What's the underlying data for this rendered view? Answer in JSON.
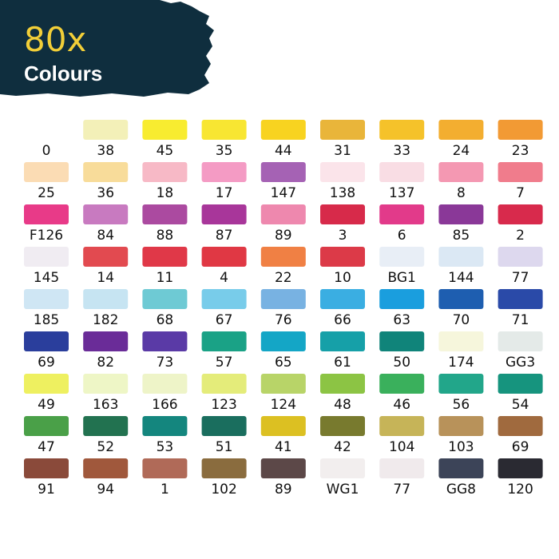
{
  "header": {
    "count": "80x",
    "subtitle": "Colours"
  },
  "swatches": [
    [
      {
        "label": "0"
      },
      {
        "label": "38",
        "color": "#f3f0b8"
      },
      {
        "label": "45",
        "color": "#f8ec30"
      },
      {
        "label": "35",
        "color": "#f8e632"
      },
      {
        "label": "44",
        "color": "#f8d320"
      },
      {
        "label": "31",
        "color": "#e9b53a"
      },
      {
        "label": "33",
        "color": "#f5c22a"
      },
      {
        "label": "24",
        "color": "#f3ae30"
      },
      {
        "label": "23",
        "color": "#f29a34"
      }
    ],
    [
      {
        "label": "25",
        "color": "#fbdcb4"
      },
      {
        "label": "36",
        "color": "#f8dc9a"
      },
      {
        "label": "18",
        "color": "#f7b9c6"
      },
      {
        "label": "17",
        "color": "#f49bc4"
      },
      {
        "label": "147",
        "color": "#a562b4"
      },
      {
        "label": "138",
        "color": "#fbe4ea"
      },
      {
        "label": "137",
        "color": "#f9dde4"
      },
      {
        "label": "8",
        "color": "#f498b2"
      },
      {
        "label": "7",
        "color": "#f07c8c"
      }
    ],
    [
      {
        "label": "F126",
        "color": "#e83a88"
      },
      {
        "label": "84",
        "color": "#c87ac0"
      },
      {
        "label": "88",
        "color": "#ab4aa0"
      },
      {
        "label": "87",
        "color": "#a8369a"
      },
      {
        "label": "89",
        "color": "#ee88ae"
      },
      {
        "label": "3",
        "color": "#d72a4a"
      },
      {
        "label": "6",
        "color": "#e23a8a"
      },
      {
        "label": "85",
        "color": "#8a3898"
      },
      {
        "label": "2",
        "color": "#d82a4c"
      }
    ],
    [
      {
        "label": "145",
        "color": "#f0ecf2"
      },
      {
        "label": "14",
        "color": "#e24a50"
      },
      {
        "label": "11",
        "color": "#e03848"
      },
      {
        "label": "4",
        "color": "#e03844"
      },
      {
        "label": "22",
        "color": "#f08044"
      },
      {
        "label": "10",
        "color": "#dc3a48"
      },
      {
        "label": "BG1",
        "color": "#e8eef6"
      },
      {
        "label": "144",
        "color": "#dbe8f4"
      },
      {
        "label": "77",
        "color": "#ddd8ee"
      }
    ],
    [
      {
        "label": "185",
        "color": "#cfe6f4"
      },
      {
        "label": "182",
        "color": "#c6e4f2"
      },
      {
        "label": "68",
        "color": "#6ecad4"
      },
      {
        "label": "67",
        "color": "#78ccea"
      },
      {
        "label": "76",
        "color": "#78b2e2"
      },
      {
        "label": "66",
        "color": "#3aaee2"
      },
      {
        "label": "63",
        "color": "#1a9ede"
      },
      {
        "label": "70",
        "color": "#1e5eb0"
      },
      {
        "label": "71",
        "color": "#2a4aa8"
      }
    ],
    [
      {
        "label": "69",
        "color": "#2a3e9c"
      },
      {
        "label": "82",
        "color": "#6a2c98"
      },
      {
        "label": "73",
        "color": "#5a3aa6"
      },
      {
        "label": "57",
        "color": "#1aa286"
      },
      {
        "label": "65",
        "color": "#14a6c6"
      },
      {
        "label": "61",
        "color": "#16a0a8"
      },
      {
        "label": "50",
        "color": "#10847a"
      },
      {
        "label": "174",
        "color": "#f6f6dc"
      },
      {
        "label": "GG3",
        "color": "#e4eae8"
      }
    ],
    [
      {
        "label": "49",
        "color": "#eef060"
      },
      {
        "label": "163",
        "color": "#eef6c6"
      },
      {
        "label": "166",
        "color": "#eef4c8"
      },
      {
        "label": "123",
        "color": "#e4ec7a"
      },
      {
        "label": "124",
        "color": "#b8d468"
      },
      {
        "label": "48",
        "color": "#8cc444"
      },
      {
        "label": "46",
        "color": "#3ab05c"
      },
      {
        "label": "56",
        "color": "#22a68a"
      },
      {
        "label": "54",
        "color": "#16947e"
      }
    ],
    [
      {
        "label": "47",
        "color": "#4aa048"
      },
      {
        "label": "52",
        "color": "#227250"
      },
      {
        "label": "53",
        "color": "#14867e"
      },
      {
        "label": "51",
        "color": "#1a6e5e"
      },
      {
        "label": "41",
        "color": "#dcc022"
      },
      {
        "label": "42",
        "color": "#787a2e"
      },
      {
        "label": "104",
        "color": "#c6b458"
      },
      {
        "label": "103",
        "color": "#b8925a"
      },
      {
        "label": "69",
        "color": "#a06a3e"
      }
    ],
    [
      {
        "label": "91",
        "color": "#8a4a3a"
      },
      {
        "label": "94",
        "color": "#a0583c"
      },
      {
        "label": "1",
        "color": "#b06a58"
      },
      {
        "label": "102",
        "color": "#8a6c3e"
      },
      {
        "label": "89",
        "color": "#5c4848"
      },
      {
        "label": "WG1",
        "color": "#f2eeee"
      },
      {
        "label": "77",
        "color": "#f0eaec"
      },
      {
        "label": "GG8",
        "color": "#3c4458"
      },
      {
        "label": "120",
        "color": "#2a2a32"
      }
    ]
  ]
}
